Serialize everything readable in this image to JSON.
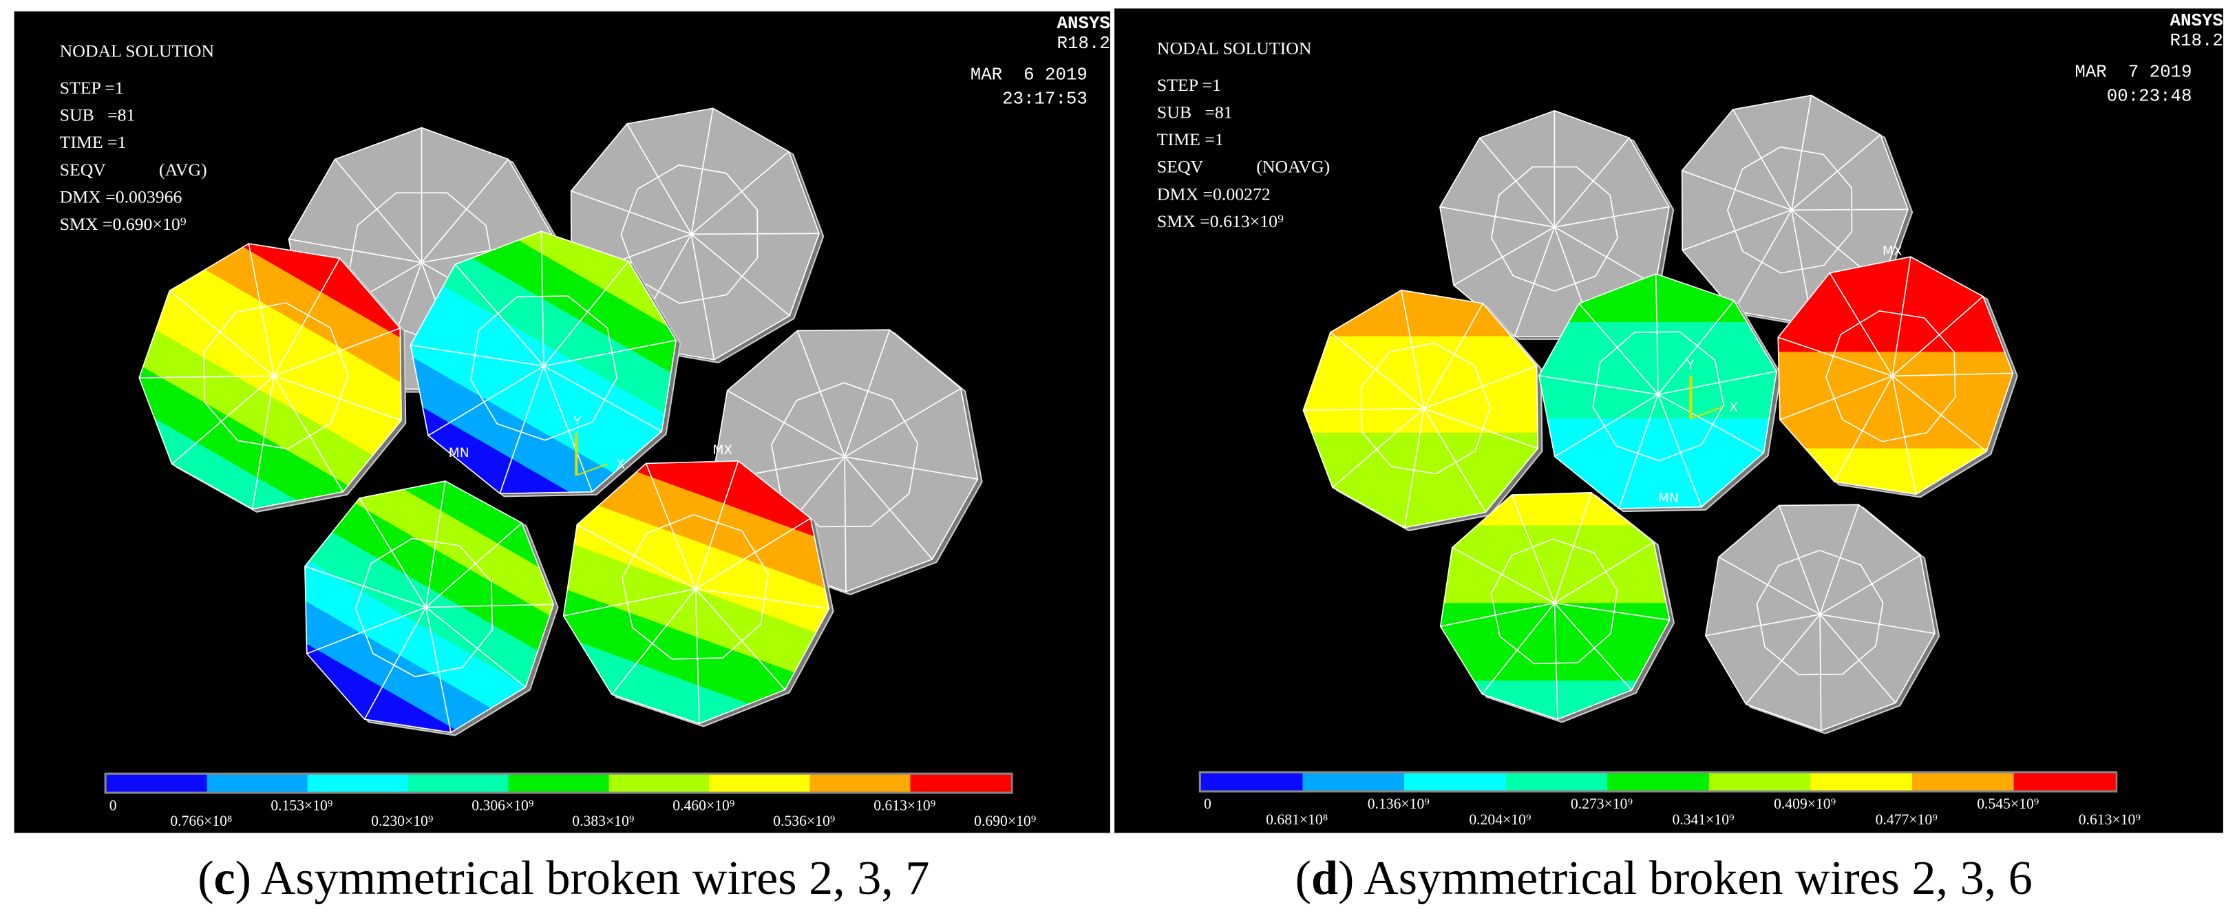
{
  "panels": [
    {
      "nodal": "NODAL SOLUTION",
      "info": [
        "STEP =1",
        "SUB   =81",
        "TIME =1",
        "SEQV",
        "DMX =0.003966",
        "SMX =0.690×10⁹"
      ],
      "avg": "(AVG)",
      "logo": "ANSYS",
      "version": "R18.2",
      "date": "MAR  6 2019",
      "time": "23:17:53",
      "markers": {
        "mn": "MN",
        "mx": "MX",
        "y": "Y",
        "x": "X"
      },
      "legend": {
        "colors": [
          "#0a0aff",
          "#00a8ff",
          "#00ffff",
          "#00ffaa",
          "#00f000",
          "#aaff00",
          "#ffff00",
          "#ffaa00",
          "#ff0000"
        ],
        "labels": [
          "0",
          "0.766×10⁸",
          "0.153×10⁹",
          "0.230×10⁹",
          "0.306×10⁹",
          "0.383×10⁹",
          "0.460×10⁹",
          "0.536×10⁹",
          "0.613×10⁹",
          "0.690×10⁹"
        ]
      },
      "caption": {
        "open": "(",
        "letter": "c",
        "rest": ") Asymmetrical broken wires 2, 3, 7"
      }
    },
    {
      "nodal": "NODAL SOLUTION",
      "info": [
        "STEP =1",
        "SUB   =81",
        "TIME =1",
        "SEQV",
        "DMX =0.00272",
        "SMX =0.613×10⁹"
      ],
      "avg": "(NOAVG)",
      "logo": "ANSYS",
      "version": "R18.2",
      "date": "MAR  7 2019",
      "time": "00:23:48",
      "markers": {
        "mn": "MN",
        "mx": "MX",
        "y": "Y",
        "x": "X"
      },
      "legend": {
        "colors": [
          "#0a0aff",
          "#00a8ff",
          "#00ffff",
          "#00ffaa",
          "#00f000",
          "#aaff00",
          "#ffff00",
          "#ffaa00",
          "#ff0000"
        ],
        "labels": [
          "0",
          "0.681×10⁸",
          "0.136×10⁹",
          "0.204×10⁹",
          "0.273×10⁹",
          "0.341×10⁹",
          "0.409×10⁹",
          "0.477×10⁹",
          "0.545×10⁹",
          "0.613×10⁹"
        ]
      },
      "caption": {
        "open": "(",
        "letter": "d",
        "rest": ") Asymmetrical broken wires 2, 3, 6"
      }
    }
  ]
}
